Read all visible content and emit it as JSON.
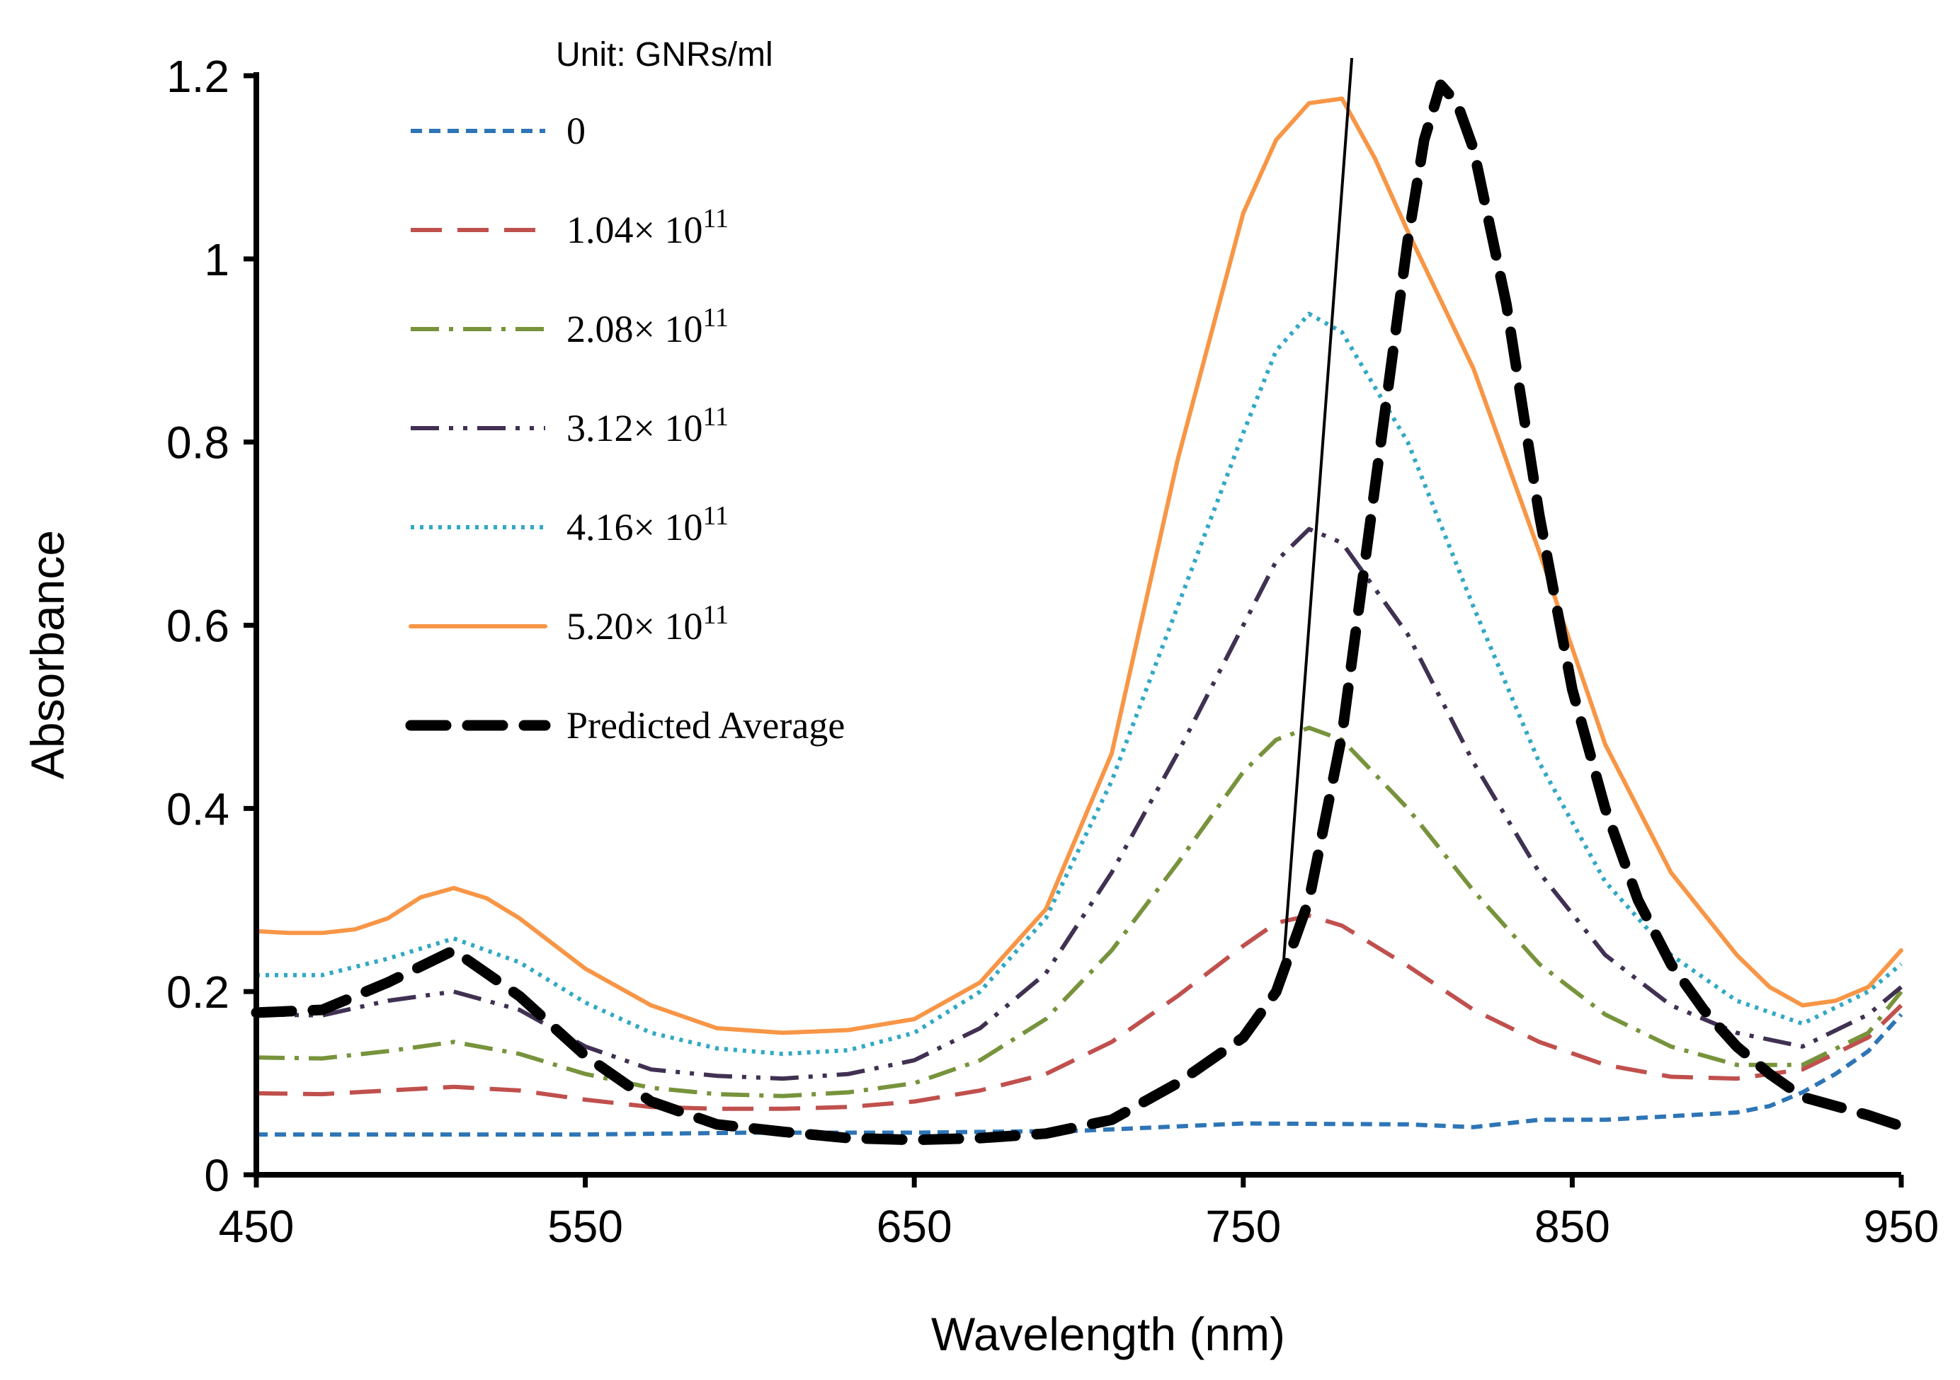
{
  "chart_data": {
    "type": "line",
    "xlabel": "Wavelength  (nm)",
    "ylabel": "Absorbance",
    "xlim": [
      450,
      950
    ],
    "ylim": [
      0,
      1.2
    ],
    "xticks": [
      "450",
      "550",
      "650",
      "750",
      "850",
      "950"
    ],
    "yticks": [
      "0",
      "0.2",
      "0.4",
      "0.6",
      "0.8",
      "1",
      "1.2"
    ],
    "grid": false,
    "legend_title": "Unit: GNRs/ml",
    "legend_position": "top-left",
    "series": [
      {
        "name": "0",
        "color": "#2E75B6",
        "style": "short-dash",
        "x": [
          450,
          500,
          550,
          600,
          650,
          700,
          750,
          800,
          820,
          840,
          860,
          880,
          900,
          910,
          920,
          930,
          940,
          950
        ],
        "y": [
          0.044,
          0.044,
          0.044,
          0.046,
          0.046,
          0.048,
          0.056,
          0.055,
          0.052,
          0.06,
          0.06,
          0.064,
          0.068,
          0.075,
          0.09,
          0.11,
          0.135,
          0.175
        ]
      },
      {
        "name": "1.04×10^11",
        "name_base": "1.04",
        "name_exp": "11",
        "color": "#C0504D",
        "style": "long-dash",
        "x": [
          450,
          470,
          490,
          510,
          530,
          550,
          570,
          590,
          610,
          630,
          650,
          670,
          690,
          710,
          730,
          750,
          760,
          770,
          780,
          800,
          820,
          840,
          860,
          880,
          900,
          920,
          940,
          950
        ],
        "y": [
          0.089,
          0.088,
          0.092,
          0.096,
          0.092,
          0.082,
          0.074,
          0.072,
          0.072,
          0.074,
          0.08,
          0.092,
          0.11,
          0.145,
          0.195,
          0.25,
          0.275,
          0.283,
          0.272,
          0.228,
          0.18,
          0.145,
          0.12,
          0.107,
          0.105,
          0.115,
          0.15,
          0.185
        ]
      },
      {
        "name": "2.08×10^11",
        "name_base": "2.08",
        "name_exp": "11",
        "color": "#77933C",
        "style": "dash-dot",
        "x": [
          450,
          470,
          490,
          510,
          530,
          550,
          570,
          590,
          610,
          630,
          650,
          670,
          690,
          710,
          730,
          750,
          760,
          770,
          780,
          800,
          820,
          840,
          860,
          880,
          900,
          920,
          940,
          950
        ],
        "y": [
          0.128,
          0.127,
          0.135,
          0.145,
          0.132,
          0.11,
          0.095,
          0.088,
          0.086,
          0.09,
          0.1,
          0.125,
          0.17,
          0.245,
          0.34,
          0.44,
          0.475,
          0.488,
          0.475,
          0.4,
          0.31,
          0.23,
          0.175,
          0.14,
          0.12,
          0.12,
          0.155,
          0.2
        ]
      },
      {
        "name": "3.12×10^11",
        "name_base": "3.12",
        "name_exp": "11",
        "color": "#403152",
        "style": "dash-dot-dot",
        "x": [
          450,
          470,
          490,
          510,
          530,
          550,
          570,
          590,
          610,
          630,
          650,
          670,
          690,
          710,
          730,
          750,
          760,
          770,
          780,
          800,
          820,
          840,
          860,
          880,
          900,
          920,
          940,
          950
        ],
        "y": [
          0.175,
          0.174,
          0.19,
          0.2,
          0.18,
          0.14,
          0.115,
          0.108,
          0.105,
          0.11,
          0.125,
          0.16,
          0.22,
          0.33,
          0.46,
          0.6,
          0.67,
          0.705,
          0.69,
          0.59,
          0.45,
          0.33,
          0.24,
          0.185,
          0.155,
          0.14,
          0.175,
          0.205
        ]
      },
      {
        "name": "4.16×10^11",
        "name_base": "4.16",
        "name_exp": "11",
        "color": "#31A8C4",
        "style": "dotted",
        "x": [
          450,
          470,
          490,
          510,
          530,
          550,
          570,
          590,
          610,
          630,
          650,
          670,
          690,
          710,
          730,
          750,
          760,
          770,
          780,
          800,
          820,
          840,
          860,
          880,
          900,
          920,
          940,
          950
        ],
        "y": [
          0.218,
          0.218,
          0.236,
          0.258,
          0.232,
          0.188,
          0.155,
          0.138,
          0.132,
          0.136,
          0.155,
          0.2,
          0.28,
          0.43,
          0.62,
          0.81,
          0.9,
          0.94,
          0.92,
          0.8,
          0.62,
          0.45,
          0.32,
          0.24,
          0.19,
          0.165,
          0.2,
          0.23
        ]
      },
      {
        "name": "5.20×10^11",
        "name_base": "5.20",
        "name_exp": "11",
        "color": "#F79646",
        "style": "solid",
        "x": [
          450,
          460,
          470,
          480,
          490,
          500,
          510,
          520,
          530,
          550,
          570,
          590,
          610,
          630,
          650,
          670,
          690,
          710,
          730,
          750,
          760,
          770,
          780,
          790,
          800,
          820,
          840,
          860,
          880,
          900,
          910,
          920,
          930,
          940,
          950
        ],
        "y": [
          0.266,
          0.264,
          0.264,
          0.268,
          0.28,
          0.303,
          0.313,
          0.302,
          0.28,
          0.225,
          0.185,
          0.16,
          0.155,
          0.158,
          0.17,
          0.21,
          0.29,
          0.46,
          0.78,
          1.05,
          1.13,
          1.17,
          1.175,
          1.11,
          1.03,
          0.88,
          0.68,
          0.47,
          0.33,
          0.24,
          0.205,
          0.185,
          0.19,
          0.205,
          0.245
        ]
      },
      {
        "name": "Predicted Average",
        "color": "#000000",
        "style": "thick-dash",
        "x": [
          450,
          470,
          490,
          510,
          530,
          550,
          570,
          590,
          610,
          630,
          650,
          670,
          690,
          710,
          730,
          750,
          760,
          770,
          780,
          790,
          800,
          805,
          810,
          815,
          820,
          830,
          840,
          850,
          860,
          870,
          880,
          890,
          900,
          910,
          920,
          930,
          940,
          950
        ],
        "y": [
          0.177,
          0.18,
          0.21,
          0.245,
          0.195,
          0.13,
          0.08,
          0.055,
          0.047,
          0.04,
          0.038,
          0.04,
          0.045,
          0.06,
          0.1,
          0.15,
          0.2,
          0.3,
          0.48,
          0.75,
          1.02,
          1.13,
          1.19,
          1.17,
          1.12,
          0.95,
          0.72,
          0.53,
          0.4,
          0.3,
          0.23,
          0.18,
          0.14,
          0.11,
          0.085,
          0.075,
          0.065,
          0.053
        ]
      }
    ],
    "annotation_line": {
      "x": [
        762,
        783
      ],
      "y": [
        0.22,
        1.2
      ]
    }
  }
}
